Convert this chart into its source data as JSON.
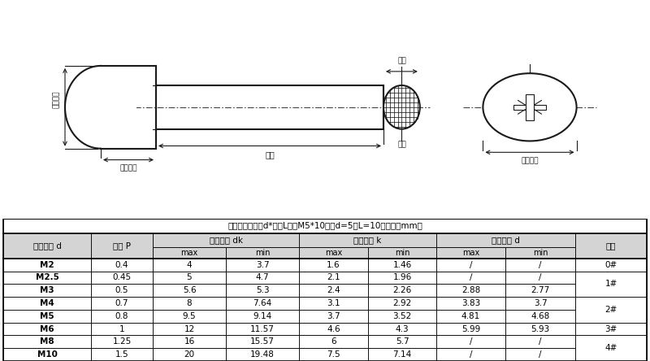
{
  "title_note": "尺寸标注：直径d*长度L，如M5*10，即d=5，L=10（单位：mm）",
  "rows": [
    [
      "M2",
      "0.4",
      "4",
      "3.7",
      "1.6",
      "1.46",
      "/",
      "/",
      "0#"
    ],
    [
      "M2.5",
      "0.45",
      "5",
      "4.7",
      "2.1",
      "1.96",
      "/",
      "/",
      "1#"
    ],
    [
      "M3",
      "0.5",
      "5.6",
      "5.3",
      "2.4",
      "2.26",
      "2.88",
      "2.77",
      ""
    ],
    [
      "M4",
      "0.7",
      "8",
      "7.64",
      "3.1",
      "2.92",
      "3.83",
      "3.7",
      "2#"
    ],
    [
      "M5",
      "0.8",
      "9.5",
      "9.14",
      "3.7",
      "3.52",
      "4.81",
      "4.68",
      ""
    ],
    [
      "M6",
      "1",
      "12",
      "11.57",
      "4.6",
      "4.3",
      "5.99",
      "5.93",
      "3#"
    ],
    [
      "M8",
      "1.25",
      "16",
      "15.57",
      "6",
      "5.7",
      "/",
      "/",
      "4#"
    ],
    [
      "M10",
      "1.5",
      "20",
      "19.48",
      "7.5",
      "7.14",
      "/",
      "/",
      ""
    ]
  ],
  "merged_slots": {
    "0#": [
      0
    ],
    "1#": [
      1,
      2
    ],
    "2#": [
      3,
      4
    ],
    "3#": [
      5
    ],
    "4#": [
      6,
      7
    ]
  },
  "bg_color": "#ffffff",
  "header_bg": "#d4d4d4",
  "border_color": "#000000",
  "text_color": "#000000",
  "diagram_bg": "#f8f8f8",
  "lc": "#1a1a1a"
}
